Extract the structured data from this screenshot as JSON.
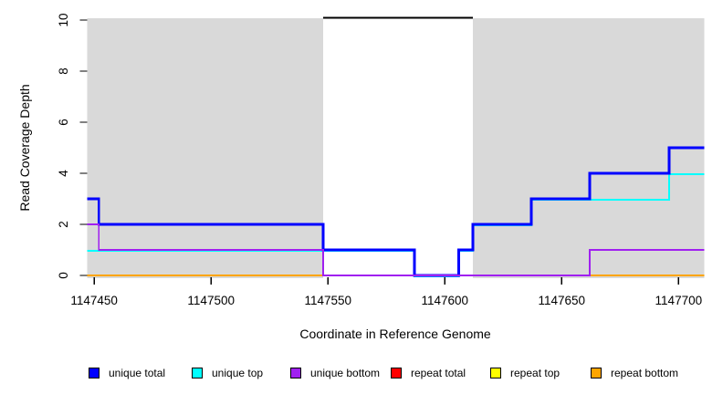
{
  "chart_data": {
    "type": "line",
    "interpolation": "step",
    "title": "",
    "xlabel": "Coordinate in Reference Genome",
    "ylabel": "Read Coverage Depth",
    "xlim": [
      1147447,
      1147711
    ],
    "ylim": [
      0,
      10
    ],
    "xticks": [
      1147450,
      1147500,
      1147550,
      1147600,
      1147650,
      1147700
    ],
    "yticks": [
      0,
      2,
      4,
      6,
      8,
      10
    ],
    "grid": false,
    "plot_bg": "#ffffff",
    "shaded_regions": [
      {
        "name": "repeat-region-left",
        "x0": 1147447,
        "x1": 1147548,
        "color": "#d9d9d9"
      },
      {
        "name": "repeat-region-right",
        "x0": 1147612,
        "x1": 1147711,
        "color": "#d9d9d9"
      }
    ],
    "gap_marker": {
      "x0": 1147548,
      "x1": 1147612,
      "y": 10,
      "color": "#000000"
    },
    "series": [
      {
        "name": "repeat total",
        "color": "#ff0000",
        "points": [
          [
            1147447,
            0
          ],
          [
            1147711,
            0
          ]
        ]
      },
      {
        "name": "repeat top",
        "color": "#ffff00",
        "points": [
          [
            1147447,
            0
          ],
          [
            1147711,
            0
          ]
        ]
      },
      {
        "name": "repeat bottom",
        "color": "#ffa500",
        "points": [
          [
            1147447,
            0
          ],
          [
            1147711,
            0
          ]
        ]
      },
      {
        "name": "unique top",
        "color": "#00ffff",
        "points": [
          [
            1147447,
            1
          ],
          [
            1147587,
            1
          ],
          [
            1147587,
            0
          ],
          [
            1147606,
            0
          ],
          [
            1147606,
            1
          ],
          [
            1147612,
            1
          ],
          [
            1147612,
            2
          ],
          [
            1147637,
            2
          ],
          [
            1147637,
            3
          ],
          [
            1147696,
            3
          ],
          [
            1147696,
            4
          ],
          [
            1147711,
            4
          ]
        ]
      },
      {
        "name": "unique total",
        "color": "#0000ff",
        "points": [
          [
            1147447,
            3
          ],
          [
            1147452,
            3
          ],
          [
            1147452,
            2
          ],
          [
            1147548,
            2
          ],
          [
            1147548,
            1
          ],
          [
            1147587,
            1
          ],
          [
            1147587,
            0
          ],
          [
            1147606,
            0
          ],
          [
            1147606,
            1
          ],
          [
            1147612,
            1
          ],
          [
            1147612,
            2
          ],
          [
            1147637,
            2
          ],
          [
            1147637,
            3
          ],
          [
            1147662,
            3
          ],
          [
            1147662,
            4
          ],
          [
            1147696,
            4
          ],
          [
            1147696,
            5
          ],
          [
            1147711,
            5
          ]
        ]
      },
      {
        "name": "unique bottom",
        "color": "#a020f0",
        "points": [
          [
            1147447,
            2
          ],
          [
            1147452,
            2
          ],
          [
            1147452,
            1
          ],
          [
            1147548,
            1
          ],
          [
            1147548,
            0
          ],
          [
            1147662,
            0
          ],
          [
            1147662,
            1
          ],
          [
            1147711,
            1
          ]
        ]
      }
    ],
    "legend_position": "bottom"
  },
  "legend": {
    "items": [
      {
        "label": "unique total",
        "color": "#0000ff"
      },
      {
        "label": "unique top",
        "color": "#00ffff"
      },
      {
        "label": "unique bottom",
        "color": "#a020f0"
      },
      {
        "label": "repeat total",
        "color": "#ff0000"
      },
      {
        "label": "repeat top",
        "color": "#ffff00"
      },
      {
        "label": "repeat bottom",
        "color": "#ffa500"
      }
    ]
  }
}
